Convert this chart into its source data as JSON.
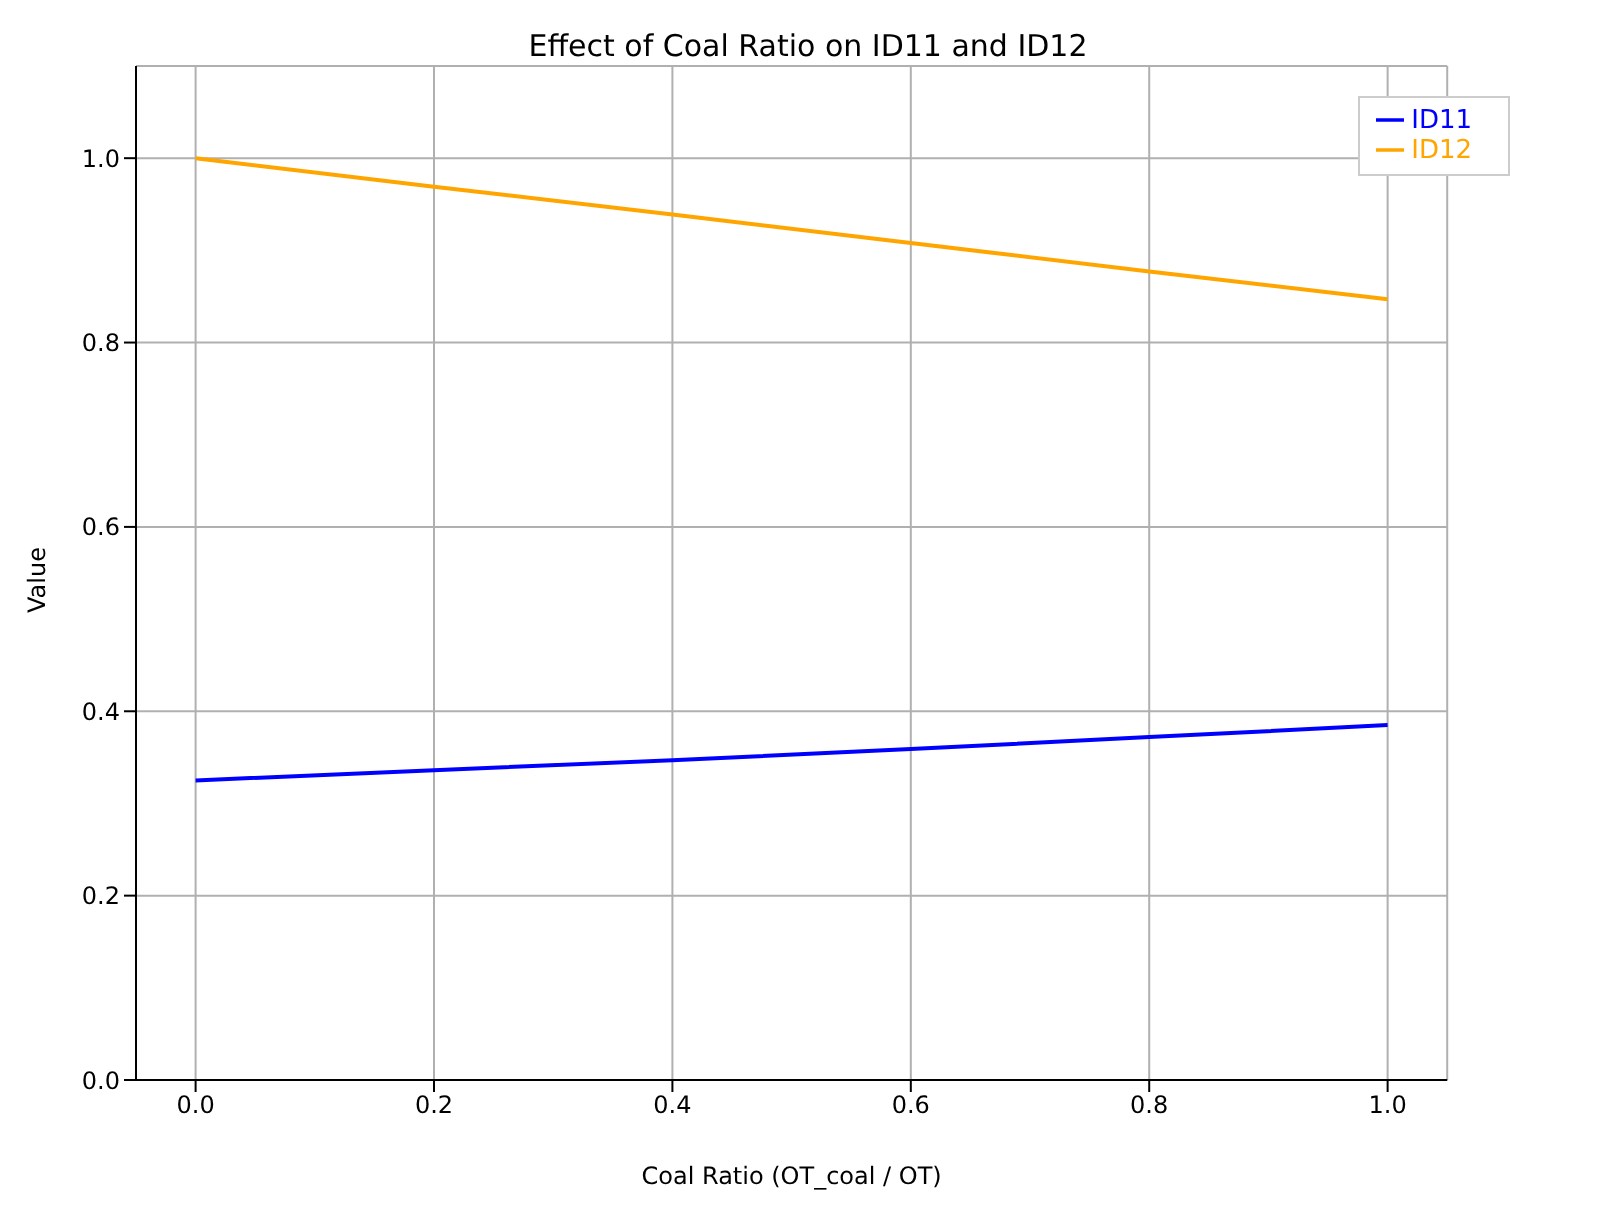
{
  "chart_data": {
    "type": "line",
    "title": "Effect of Coal Ratio on ID11 and ID12",
    "xlabel": "Coal Ratio (OT_coal / OT)",
    "ylabel": "Value",
    "x": [
      0,
      0.2,
      0.4,
      0.6,
      0.8,
      1.0
    ],
    "series": [
      {
        "name": "ID11",
        "color": "#0000ff",
        "values": [
          0.325,
          0.336,
          0.347,
          0.359,
          0.372,
          0.385
        ]
      },
      {
        "name": "ID12",
        "color": "#ffa500",
        "values": [
          1.0,
          0.969,
          0.939,
          0.908,
          0.877,
          0.847
        ]
      }
    ],
    "xlim": [
      -0.05,
      1.05
    ],
    "xticks": [
      {
        "value": 0,
        "label": "0.0"
      },
      0.2,
      0.4,
      0.6,
      0.8,
      {
        "value": 1,
        "label": "1.0"
      }
    ],
    "ylim": [
      0,
      1.1
    ],
    "yticks": [
      {
        "value": 0,
        "label": "0.0"
      },
      0.2,
      0.4,
      0.6,
      0.8,
      {
        "value": 1,
        "label": "1.0"
      }
    ],
    "grid": true,
    "legend": "top right",
    "marker": "none",
    "line_style": "solid"
  }
}
